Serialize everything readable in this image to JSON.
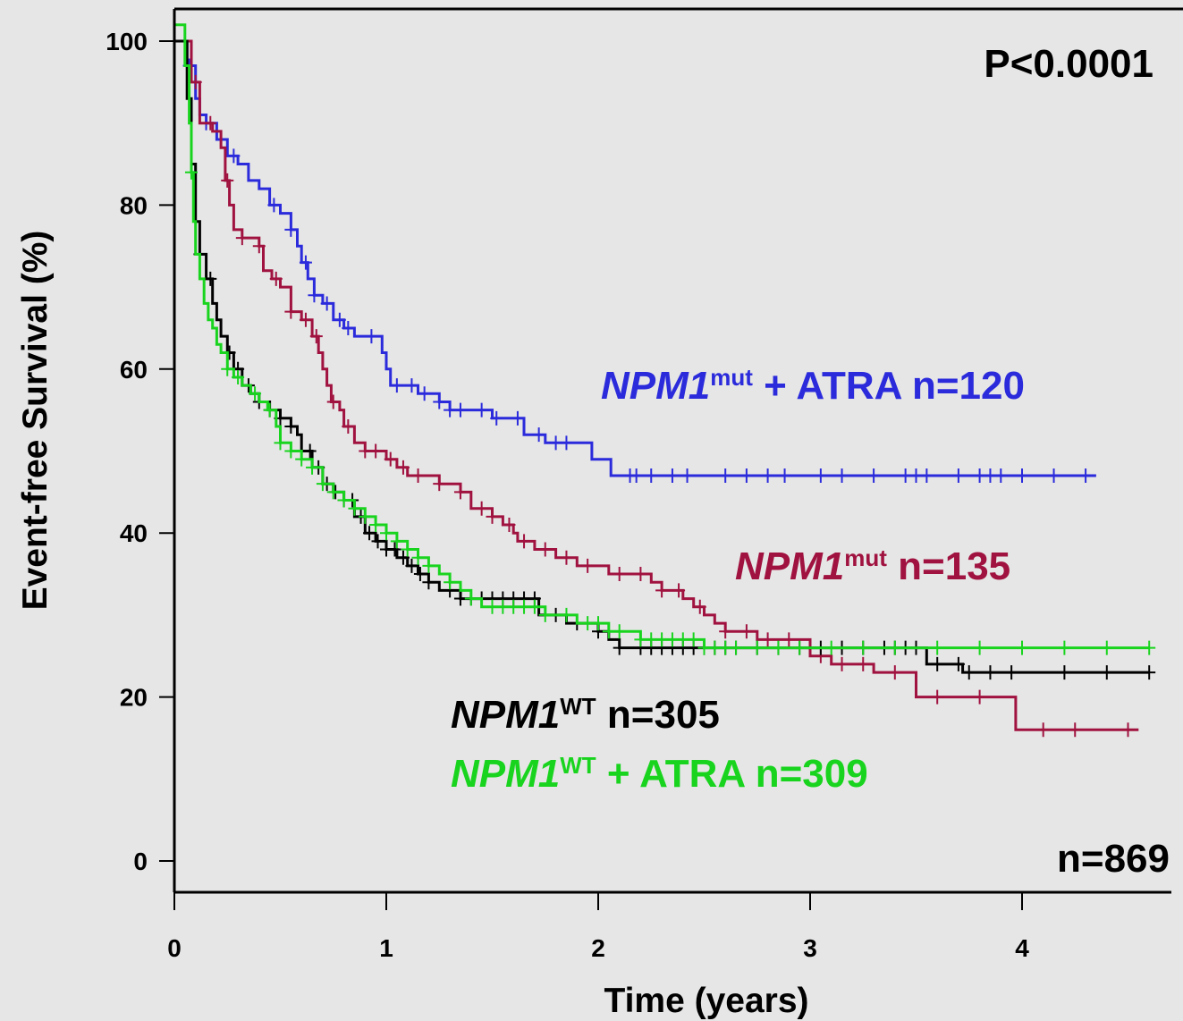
{
  "chart_data": {
    "type": "line",
    "subtype": "kaplan-meier",
    "xlabel": "Time (years)",
    "ylabel": "Event-free Survival (%)",
    "xlim": [
      0,
      4.7
    ],
    "ylim": [
      0,
      100
    ],
    "x_ticks": [
      "0",
      "1",
      "2",
      "3",
      "4"
    ],
    "y_ticks": [
      "0",
      "20",
      "40",
      "60",
      "80",
      "100"
    ],
    "grid": false,
    "annotations": {
      "p_value": "P<0.0001",
      "total_n": "n=869"
    },
    "series": [
      {
        "gene": "NPM1",
        "superscript": "mut",
        "suffix": " + ATRA n=120",
        "color": "#2b2bdc",
        "points": [
          [
            0,
            100
          ],
          [
            0.05,
            100
          ],
          [
            0.06,
            97
          ],
          [
            0.1,
            93
          ],
          [
            0.12,
            91
          ],
          [
            0.15,
            90
          ],
          [
            0.2,
            88
          ],
          [
            0.25,
            86
          ],
          [
            0.3,
            85
          ],
          [
            0.35,
            83
          ],
          [
            0.4,
            82
          ],
          [
            0.45,
            80
          ],
          [
            0.5,
            79
          ],
          [
            0.55,
            77
          ],
          [
            0.58,
            75
          ],
          [
            0.6,
            73
          ],
          [
            0.63,
            71
          ],
          [
            0.66,
            69
          ],
          [
            0.7,
            68
          ],
          [
            0.75,
            66
          ],
          [
            0.8,
            65
          ],
          [
            0.85,
            64
          ],
          [
            0.95,
            64
          ],
          [
            0.98,
            62
          ],
          [
            1.0,
            60
          ],
          [
            1.02,
            58
          ],
          [
            1.1,
            58
          ],
          [
            1.15,
            57
          ],
          [
            1.2,
            57
          ],
          [
            1.25,
            56
          ],
          [
            1.3,
            55
          ],
          [
            1.35,
            55
          ],
          [
            1.5,
            54
          ],
          [
            1.6,
            54
          ],
          [
            1.65,
            52
          ],
          [
            1.7,
            52
          ],
          [
            1.75,
            51
          ],
          [
            1.95,
            51
          ],
          [
            1.97,
            49
          ],
          [
            2.05,
            49
          ],
          [
            2.06,
            47
          ],
          [
            4.35,
            47
          ]
        ],
        "censors": [
          0.07,
          0.15,
          0.28,
          0.47,
          0.55,
          0.62,
          0.66,
          0.72,
          0.78,
          0.82,
          0.93,
          1.05,
          1.12,
          1.18,
          1.25,
          1.3,
          1.35,
          1.45,
          1.52,
          1.62,
          1.72,
          1.8,
          1.85,
          2.15,
          2.18,
          2.25,
          2.35,
          2.42,
          2.6,
          2.7,
          2.8,
          2.88,
          3.05,
          3.15,
          3.3,
          3.45,
          3.5,
          3.55,
          3.7,
          3.8,
          3.85,
          3.9,
          4.0,
          4.15,
          4.3
        ]
      },
      {
        "gene": "NPM1",
        "superscript": "mut",
        "suffix": " n=135",
        "color": "#a0123f",
        "points": [
          [
            0,
            100
          ],
          [
            0.06,
            100
          ],
          [
            0.08,
            95
          ],
          [
            0.12,
            90
          ],
          [
            0.18,
            89
          ],
          [
            0.22,
            87
          ],
          [
            0.24,
            83
          ],
          [
            0.26,
            80
          ],
          [
            0.28,
            77
          ],
          [
            0.32,
            76
          ],
          [
            0.4,
            75
          ],
          [
            0.42,
            72
          ],
          [
            0.46,
            71
          ],
          [
            0.5,
            70
          ],
          [
            0.55,
            67
          ],
          [
            0.6,
            66
          ],
          [
            0.65,
            64
          ],
          [
            0.68,
            62
          ],
          [
            0.7,
            60
          ],
          [
            0.72,
            58
          ],
          [
            0.74,
            56
          ],
          [
            0.78,
            55
          ],
          [
            0.8,
            53
          ],
          [
            0.85,
            51
          ],
          [
            0.9,
            50
          ],
          [
            1.0,
            49
          ],
          [
            1.05,
            48
          ],
          [
            1.1,
            47
          ],
          [
            1.2,
            47
          ],
          [
            1.25,
            46
          ],
          [
            1.35,
            45
          ],
          [
            1.4,
            43
          ],
          [
            1.5,
            42
          ],
          [
            1.55,
            41
          ],
          [
            1.6,
            40
          ],
          [
            1.62,
            39
          ],
          [
            1.7,
            38
          ],
          [
            1.8,
            37
          ],
          [
            1.9,
            36
          ],
          [
            2.0,
            36
          ],
          [
            2.05,
            35
          ],
          [
            2.2,
            35
          ],
          [
            2.25,
            34
          ],
          [
            2.3,
            33
          ],
          [
            2.4,
            32
          ],
          [
            2.45,
            31
          ],
          [
            2.5,
            30
          ],
          [
            2.55,
            29
          ],
          [
            2.6,
            28
          ],
          [
            2.65,
            28
          ],
          [
            2.7,
            28
          ],
          [
            2.75,
            27
          ],
          [
            3.0,
            27
          ],
          [
            3.0,
            25
          ],
          [
            3.05,
            25
          ],
          [
            3.1,
            24
          ],
          [
            3.3,
            24
          ],
          [
            3.3,
            23
          ],
          [
            3.5,
            23
          ],
          [
            3.5,
            20
          ],
          [
            3.97,
            20
          ],
          [
            3.97,
            16
          ],
          [
            4.55,
            16
          ]
        ],
        "censors": [
          0.1,
          0.17,
          0.25,
          0.32,
          0.4,
          0.48,
          0.55,
          0.62,
          0.67,
          0.75,
          0.82,
          0.9,
          0.95,
          1.02,
          1.08,
          1.15,
          1.25,
          1.35,
          1.45,
          1.5,
          1.58,
          1.65,
          1.75,
          1.85,
          1.95,
          2.1,
          2.2,
          2.3,
          2.38,
          2.48,
          2.6,
          2.7,
          2.8,
          2.9,
          3.05,
          3.15,
          3.25,
          3.4,
          3.6,
          3.8,
          4.1,
          4.25,
          4.5
        ]
      },
      {
        "gene": "NPM1",
        "superscript": "WT",
        "suffix": " n=305",
        "color": "#000000",
        "points": [
          [
            0,
            100
          ],
          [
            0.04,
            100
          ],
          [
            0.06,
            93
          ],
          [
            0.08,
            85
          ],
          [
            0.1,
            78
          ],
          [
            0.12,
            74
          ],
          [
            0.15,
            71
          ],
          [
            0.18,
            68
          ],
          [
            0.2,
            66
          ],
          [
            0.22,
            64
          ],
          [
            0.25,
            62
          ],
          [
            0.28,
            60
          ],
          [
            0.32,
            58
          ],
          [
            0.36,
            57
          ],
          [
            0.4,
            56
          ],
          [
            0.45,
            55
          ],
          [
            0.5,
            54
          ],
          [
            0.55,
            53
          ],
          [
            0.58,
            52
          ],
          [
            0.6,
            50
          ],
          [
            0.65,
            48
          ],
          [
            0.7,
            46
          ],
          [
            0.75,
            45
          ],
          [
            0.8,
            44
          ],
          [
            0.85,
            42
          ],
          [
            0.9,
            40
          ],
          [
            0.95,
            39
          ],
          [
            1.0,
            38
          ],
          [
            1.05,
            37
          ],
          [
            1.1,
            36
          ],
          [
            1.15,
            35
          ],
          [
            1.2,
            34
          ],
          [
            1.25,
            33
          ],
          [
            1.3,
            33
          ],
          [
            1.35,
            32
          ],
          [
            1.4,
            32
          ],
          [
            1.5,
            32
          ],
          [
            1.7,
            32
          ],
          [
            1.72,
            30
          ],
          [
            1.8,
            30
          ],
          [
            1.85,
            29
          ],
          [
            1.95,
            29
          ],
          [
            2.0,
            28
          ],
          [
            2.05,
            27
          ],
          [
            2.1,
            26
          ],
          [
            2.2,
            26
          ],
          [
            2.3,
            26
          ],
          [
            2.4,
            26
          ],
          [
            2.5,
            26
          ],
          [
            2.6,
            26
          ],
          [
            3.55,
            26
          ],
          [
            3.55,
            24
          ],
          [
            3.7,
            24
          ],
          [
            3.72,
            23
          ],
          [
            4.6,
            23
          ]
        ],
        "censors": [
          0.12,
          0.17,
          0.26,
          0.3,
          0.35,
          0.4,
          0.45,
          0.5,
          0.55,
          0.6,
          0.64,
          0.68,
          0.72,
          0.76,
          0.8,
          0.84,
          0.88,
          0.92,
          0.96,
          1.0,
          1.04,
          1.08,
          1.12,
          1.16,
          1.2,
          1.3,
          1.35,
          1.4,
          1.45,
          1.5,
          1.55,
          1.6,
          1.65,
          1.7,
          1.8,
          1.9,
          2.0,
          2.1,
          2.2,
          2.25,
          2.3,
          2.35,
          2.4,
          2.45,
          2.5,
          2.55,
          2.6,
          2.65,
          2.75,
          2.85,
          2.95,
          3.05,
          3.15,
          3.25,
          3.35,
          3.4,
          3.45,
          3.5,
          3.6,
          3.7,
          3.75,
          3.85,
          3.95,
          4.2,
          4.4,
          4.6
        ]
      },
      {
        "gene": "NPM1",
        "superscript": "WT",
        "suffix": " + ATRA n=309",
        "color": "#19d41e",
        "points": [
          [
            0,
            102
          ],
          [
            0.03,
            102
          ],
          [
            0.05,
            97
          ],
          [
            0.07,
            90
          ],
          [
            0.08,
            84
          ],
          [
            0.09,
            78
          ],
          [
            0.1,
            74
          ],
          [
            0.12,
            71
          ],
          [
            0.14,
            68
          ],
          [
            0.16,
            66
          ],
          [
            0.18,
            65
          ],
          [
            0.2,
            63
          ],
          [
            0.22,
            62
          ],
          [
            0.25,
            60
          ],
          [
            0.28,
            59
          ],
          [
            0.32,
            58
          ],
          [
            0.36,
            57
          ],
          [
            0.4,
            56
          ],
          [
            0.44,
            55
          ],
          [
            0.48,
            53
          ],
          [
            0.5,
            51
          ],
          [
            0.55,
            50
          ],
          [
            0.6,
            49
          ],
          [
            0.65,
            48
          ],
          [
            0.7,
            46
          ],
          [
            0.75,
            45
          ],
          [
            0.8,
            44
          ],
          [
            0.85,
            43
          ],
          [
            0.9,
            42
          ],
          [
            0.95,
            41
          ],
          [
            1.0,
            40
          ],
          [
            1.05,
            39
          ],
          [
            1.1,
            38
          ],
          [
            1.15,
            37
          ],
          [
            1.2,
            36
          ],
          [
            1.25,
            35
          ],
          [
            1.3,
            34
          ],
          [
            1.35,
            33
          ],
          [
            1.4,
            32
          ],
          [
            1.45,
            31
          ],
          [
            1.5,
            31
          ],
          [
            1.7,
            31
          ],
          [
            1.75,
            30
          ],
          [
            1.85,
            30
          ],
          [
            1.9,
            29
          ],
          [
            2.0,
            29
          ],
          [
            2.05,
            28
          ],
          [
            2.1,
            28
          ],
          [
            2.2,
            27
          ],
          [
            2.4,
            27
          ],
          [
            2.5,
            26
          ],
          [
            4.6,
            26
          ]
        ],
        "censors": [
          0.08,
          0.25,
          0.3,
          0.38,
          0.45,
          0.5,
          0.55,
          0.6,
          0.65,
          0.7,
          0.75,
          0.8,
          0.85,
          0.9,
          0.95,
          1.0,
          1.05,
          1.1,
          1.15,
          1.2,
          1.3,
          1.4,
          1.5,
          1.55,
          1.6,
          1.65,
          1.7,
          1.75,
          1.85,
          1.95,
          2.0,
          2.05,
          2.1,
          2.2,
          2.25,
          2.3,
          2.35,
          2.4,
          2.45,
          2.5,
          2.55,
          2.6,
          2.65,
          2.75,
          2.85,
          2.95,
          3.1,
          3.25,
          3.4,
          3.6,
          3.8,
          4.0,
          4.2,
          4.4,
          4.6
        ]
      }
    ]
  }
}
